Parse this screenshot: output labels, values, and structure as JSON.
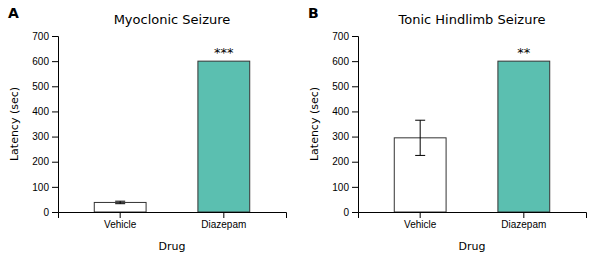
{
  "chart_data": [
    {
      "type": "bar",
      "title": "Myoclonic Seizure",
      "panel_label": "A",
      "categories": [
        "Vehicle",
        "Diazepam"
      ],
      "values": [
        38,
        600
      ],
      "errors": [
        5,
        0
      ],
      "colors": [
        "white",
        "#5bbfb0"
      ],
      "xlabel": "Drug",
      "ylabel": "Latency (sec)",
      "ylim": [
        0,
        700
      ],
      "yticks": [
        0,
        100,
        200,
        300,
        400,
        500,
        600,
        700
      ],
      "grid": false,
      "annotations": [
        {
          "category": "Diazepam",
          "text": "***"
        }
      ]
    },
    {
      "type": "bar",
      "title": "Tonic Hindlimb Seizure",
      "panel_label": "B",
      "categories": [
        "Vehicle",
        "Diazepam"
      ],
      "values": [
        295,
        600
      ],
      "errors": [
        70,
        0
      ],
      "colors": [
        "white",
        "#5bbfb0"
      ],
      "xlabel": "Drug",
      "ylabel": "Latency (sec)",
      "ylim": [
        0,
        700
      ],
      "yticks": [
        0,
        100,
        200,
        300,
        400,
        500,
        600,
        700
      ],
      "grid": false,
      "annotations": [
        {
          "category": "Diazepam",
          "text": "**"
        }
      ]
    }
  ]
}
